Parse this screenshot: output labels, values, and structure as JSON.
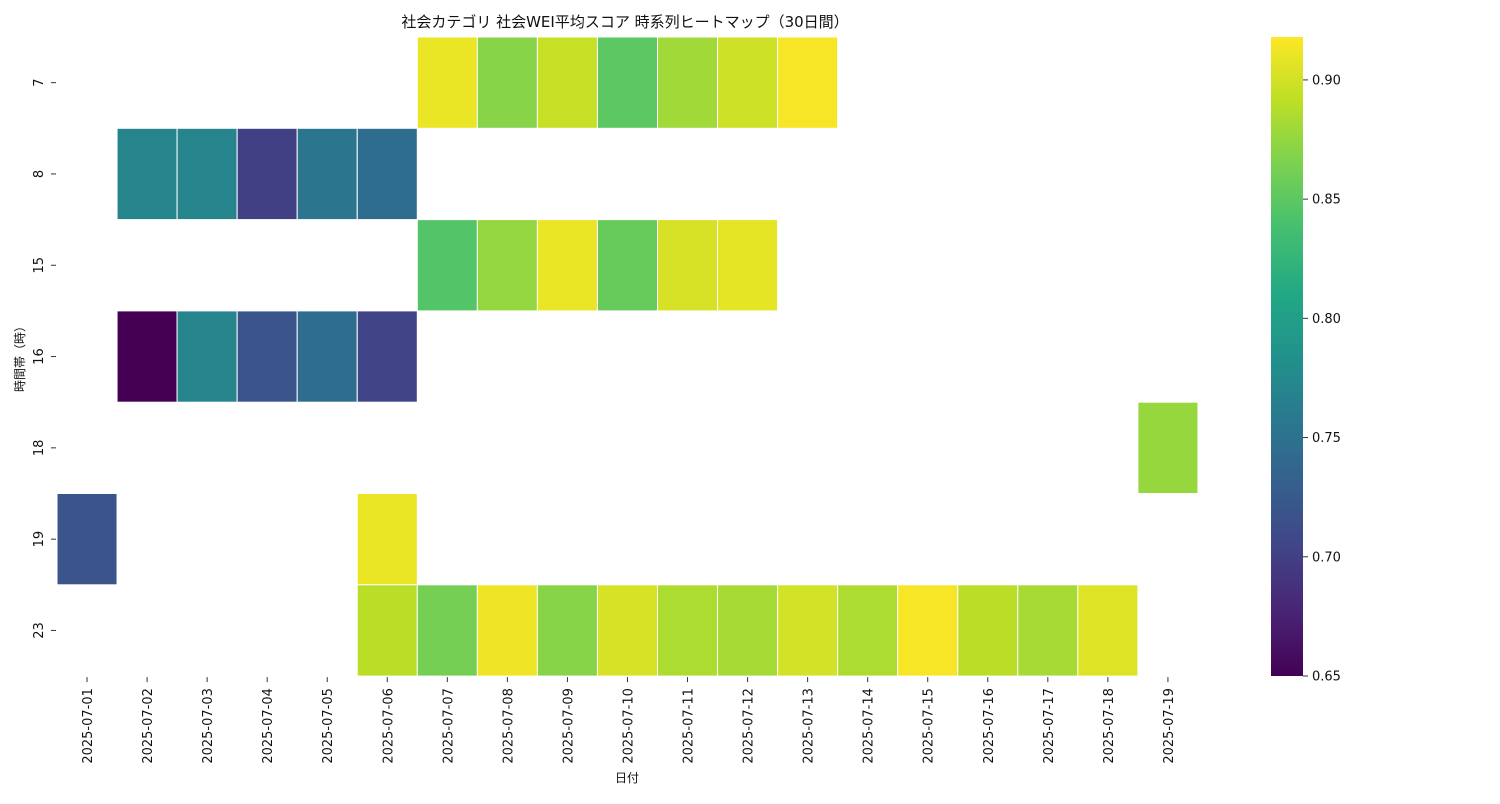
{
  "chart_data": {
    "type": "heatmap",
    "title": "社会カテゴリ 社会WEI平均スコア 時系列ヒートマップ（30日間）",
    "xlabel": "日付",
    "ylabel": "時間帯（時）",
    "x_categories": [
      "2025-07-01",
      "2025-07-02",
      "2025-07-03",
      "2025-07-04",
      "2025-07-05",
      "2025-07-06",
      "2025-07-07",
      "2025-07-08",
      "2025-07-09",
      "2025-07-10",
      "2025-07-11",
      "2025-07-12",
      "2025-07-13",
      "2025-07-14",
      "2025-07-15",
      "2025-07-16",
      "2025-07-17",
      "2025-07-18",
      "2025-07-19"
    ],
    "y_categories": [
      "7",
      "8",
      "15",
      "16",
      "18",
      "19",
      "23"
    ],
    "values": [
      [
        null,
        null,
        null,
        null,
        null,
        null,
        0.91,
        0.87,
        0.895,
        0.85,
        0.88,
        0.898,
        0.915,
        null,
        null,
        null,
        null,
        null,
        null
      ],
      [
        null,
        0.77,
        0.77,
        0.7,
        0.755,
        0.745,
        null,
        null,
        null,
        null,
        null,
        null,
        null,
        null,
        null,
        null,
        null,
        null,
        null
      ],
      [
        null,
        null,
        null,
        null,
        null,
        null,
        0.845,
        0.875,
        0.91,
        0.855,
        0.902,
        0.908,
        null,
        null,
        null,
        null,
        null,
        null,
        null
      ],
      [
        null,
        0.65,
        0.77,
        0.72,
        0.745,
        0.705,
        null,
        null,
        null,
        null,
        null,
        null,
        null,
        null,
        null,
        null,
        null,
        null,
        null
      ],
      [
        null,
        null,
        null,
        null,
        null,
        null,
        null,
        null,
        null,
        null,
        null,
        null,
        null,
        null,
        null,
        null,
        null,
        null,
        0.876
      ],
      [
        0.72,
        null,
        null,
        null,
        null,
        0.91,
        null,
        null,
        null,
        null,
        null,
        null,
        null,
        null,
        null,
        null,
        null,
        null,
        null
      ],
      [
        null,
        null,
        null,
        null,
        null,
        0.89,
        0.862,
        0.912,
        0.87,
        0.902,
        0.885,
        0.882,
        0.9,
        0.885,
        0.915,
        0.89,
        0.882,
        0.905,
        null
      ]
    ],
    "colorbar": {
      "colormap": "viridis",
      "min": 0.65,
      "max": 0.918,
      "ticks": [
        "0.65",
        "0.70",
        "0.75",
        "0.80",
        "0.85",
        "0.90"
      ]
    }
  }
}
